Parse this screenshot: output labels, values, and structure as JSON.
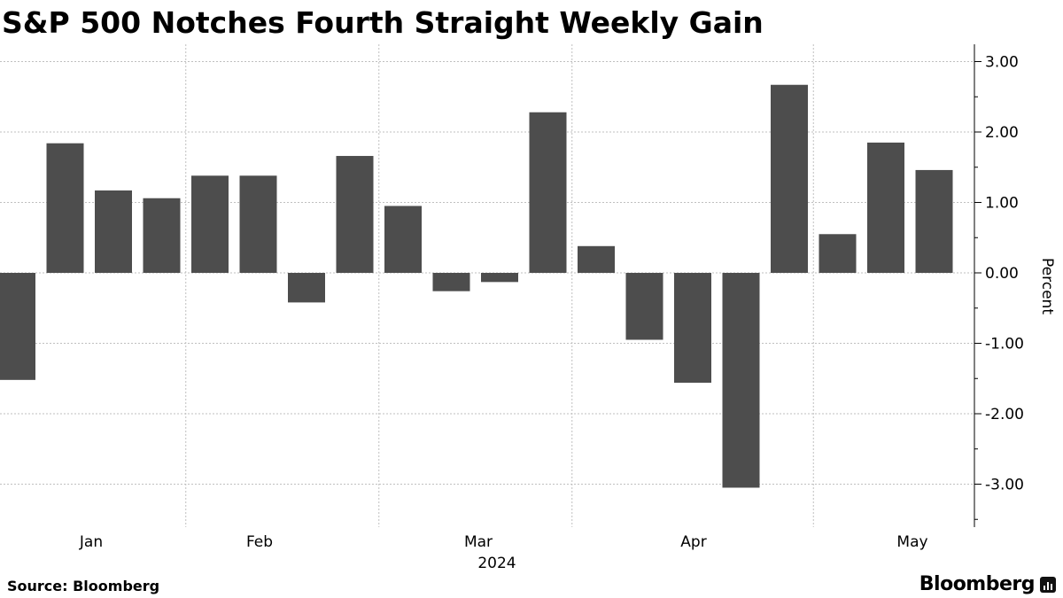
{
  "title": "S&P 500 Notches Fourth Straight Weekly Gain",
  "source": "Source: Bloomberg",
  "brand": "Bloomberg",
  "colors": {
    "bar": "#4d4d4d",
    "grid": "#bfbfbf",
    "axis": "#000000"
  },
  "chart_data": {
    "type": "bar",
    "title": "S&P 500 Notches Fourth Straight Weekly Gain",
    "ylabel": "Percent",
    "ylim": [
      -3.6,
      3.25
    ],
    "yticks": [
      3,
      2,
      1,
      0,
      -1,
      -2,
      -3
    ],
    "ytick_labels": [
      "3.00",
      "2.00",
      "1.00",
      "0.00",
      "-1.00",
      "-2.00",
      "-3.00"
    ],
    "x": [
      "2024-01-05",
      "2024-01-12",
      "2024-01-19",
      "2024-01-26",
      "2024-02-02",
      "2024-02-09",
      "2024-02-16",
      "2024-02-23",
      "2024-03-01",
      "2024-03-08",
      "2024-03-15",
      "2024-03-22",
      "2024-03-28",
      "2024-04-05",
      "2024-04-12",
      "2024-04-19",
      "2024-04-26",
      "2024-05-03",
      "2024-05-10",
      "2024-05-17"
    ],
    "values": [
      -1.52,
      1.84,
      1.17,
      1.06,
      1.38,
      1.38,
      -0.42,
      1.66,
      0.95,
      -0.26,
      -0.13,
      2.28,
      0.38,
      -0.95,
      -1.56,
      -3.05,
      2.67,
      0.55,
      1.85,
      1.46
    ],
    "month_labels": [
      "Jan",
      "Feb",
      "Mar",
      "Apr",
      "May"
    ],
    "year_label": "2024",
    "grid": true,
    "legend": "none"
  }
}
